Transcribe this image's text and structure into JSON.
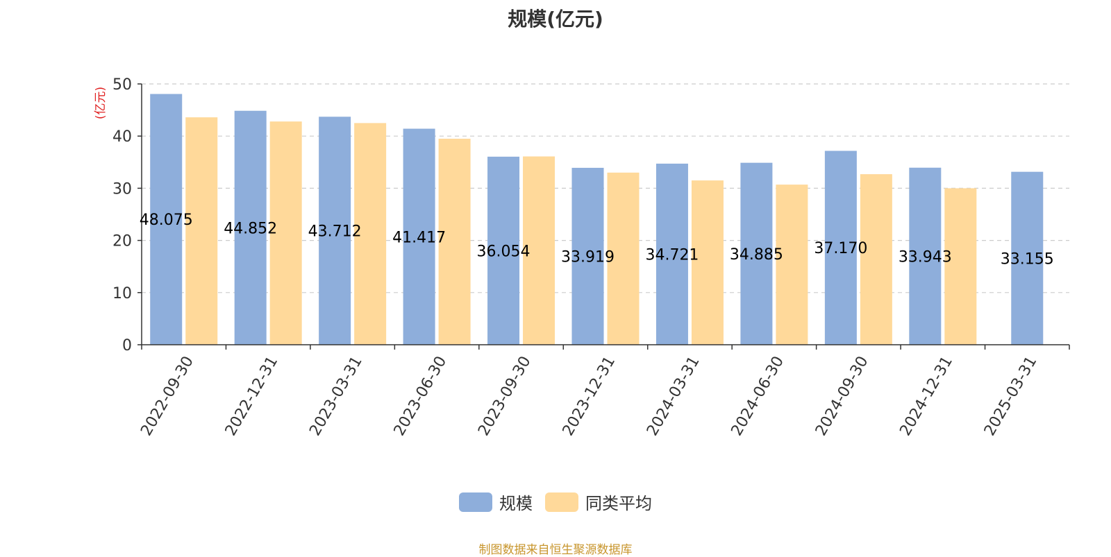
{
  "chart_data": {
    "type": "bar",
    "title": "规模(亿元)",
    "ylabel": "(亿元)",
    "xlabel": "",
    "ylim": [
      0,
      50
    ],
    "yticks": [
      0,
      10,
      20,
      30,
      40,
      50
    ],
    "grid": "horizontal-dashed",
    "legend_position": "bottom-center",
    "categories": [
      "2022-09-30",
      "2022-12-31",
      "2023-03-31",
      "2023-06-30",
      "2023-09-30",
      "2023-12-31",
      "2024-03-31",
      "2024-06-30",
      "2024-09-30",
      "2024-12-31",
      "2025-03-31"
    ],
    "series": [
      {
        "name": "规模",
        "color": "#8eaedb",
        "values": [
          48.075,
          44.852,
          43.712,
          41.417,
          36.054,
          33.919,
          34.721,
          34.885,
          37.17,
          33.943,
          33.155
        ],
        "data_labels": [
          "48.075",
          "44.852",
          "43.712",
          "41.417",
          "36.054",
          "33.919",
          "34.721",
          "34.885",
          "37.170",
          "33.943",
          "33.155"
        ]
      },
      {
        "name": "同类平均",
        "color": "#ffd99a",
        "values": [
          43.6,
          42.8,
          42.5,
          39.5,
          36.1,
          33.0,
          31.5,
          30.7,
          32.7,
          30.0,
          null
        ]
      }
    ],
    "source": "制图数据来自恒生聚源数据库"
  },
  "colors": {
    "axis": "#333333",
    "grid": "#cccccc",
    "ylabel": "#e02020",
    "source": "#c8962e"
  }
}
